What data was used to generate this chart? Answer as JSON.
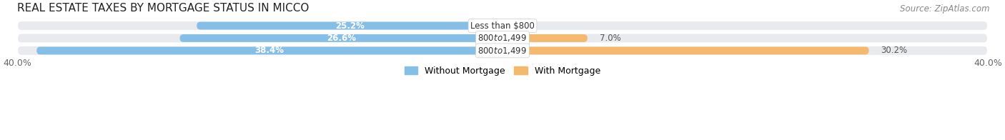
{
  "title": "REAL ESTATE TAXES BY MORTGAGE STATUS IN MICCO",
  "source": "Source: ZipAtlas.com",
  "categories": [
    "Less than $800",
    "$800 to $1,499",
    "$800 to $1,499"
  ],
  "without_mortgage": [
    25.2,
    26.6,
    38.4
  ],
  "with_mortgage": [
    0.0,
    7.0,
    30.2
  ],
  "x_max": 40.0,
  "color_without": "#85bfe8",
  "color_with": "#f5b96e",
  "row_bg_color": "#e8eaee",
  "title_fontsize": 11,
  "source_fontsize": 8.5,
  "bar_label_fontsize": 8.5,
  "axis_label_fontsize": 9,
  "legend_fontsize": 9,
  "bar_height": 0.62,
  "figsize": [
    14.06,
    1.96
  ],
  "dpi": 100
}
